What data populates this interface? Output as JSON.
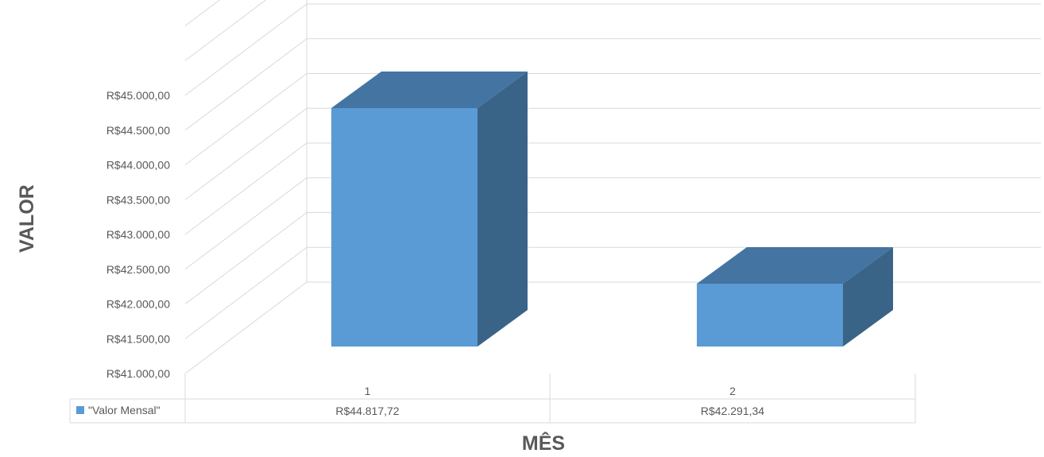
{
  "chart_data": {
    "type": "bar",
    "style": "3d-column",
    "categories": [
      "1",
      "2"
    ],
    "series": [
      {
        "name": "\"Valor Mensal\"",
        "values": [
          44817.72,
          42291.34
        ],
        "value_labels": [
          "R$44.817,72",
          "R$42.291,34"
        ]
      }
    ],
    "y_ticks": [
      41000,
      41500,
      42000,
      42500,
      43000,
      43500,
      44000,
      44500,
      45000
    ],
    "y_tick_labels": [
      "R$41.000,00",
      "R$41.500,00",
      "R$42.000,00",
      "R$42.500,00",
      "R$43.000,00",
      "R$43.500,00",
      "R$44.000,00",
      "R$44.500,00",
      "R$45.000,00"
    ],
    "ylim": [
      41000,
      45000
    ],
    "xlabel": "MÊS",
    "ylabel": "VALOR",
    "grid": true,
    "legend": "data-table-left",
    "colors": {
      "front": "#5B9BD5",
      "top": "#4474A1",
      "side": "#3A6388",
      "grid": "#D9D9D9",
      "text": "#595959"
    }
  }
}
